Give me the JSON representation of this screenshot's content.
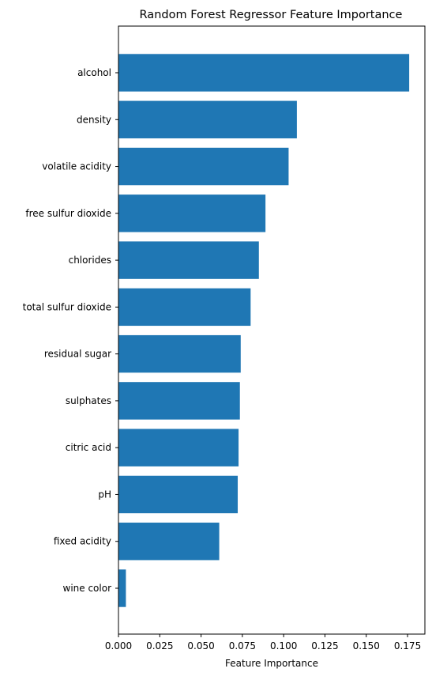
{
  "chart_data": {
    "type": "bar",
    "orientation": "horizontal",
    "title": "Random Forest Regressor Feature Importance",
    "xlabel": "Feature Importance",
    "ylabel": "",
    "categories": [
      "alcohol",
      "density",
      "volatile acidity",
      "free sulfur dioxide",
      "chlorides",
      "total sulfur dioxide",
      "residual sugar",
      "sulphates",
      "citric acid",
      "pH",
      "fixed acidity",
      "wine color"
    ],
    "values": [
      0.176,
      0.108,
      0.103,
      0.089,
      0.085,
      0.08,
      0.074,
      0.0735,
      0.0727,
      0.0722,
      0.061,
      0.0045
    ],
    "xlim": [
      0,
      0.1855
    ],
    "xticks": [
      0.0,
      0.025,
      0.05,
      0.075,
      0.1,
      0.125,
      0.15,
      0.175
    ],
    "xtick_labels": [
      "0.000",
      "0.025",
      "0.050",
      "0.075",
      "0.100",
      "0.125",
      "0.150",
      "0.175"
    ],
    "grid": false,
    "bar_color": "#1f77b4"
  }
}
